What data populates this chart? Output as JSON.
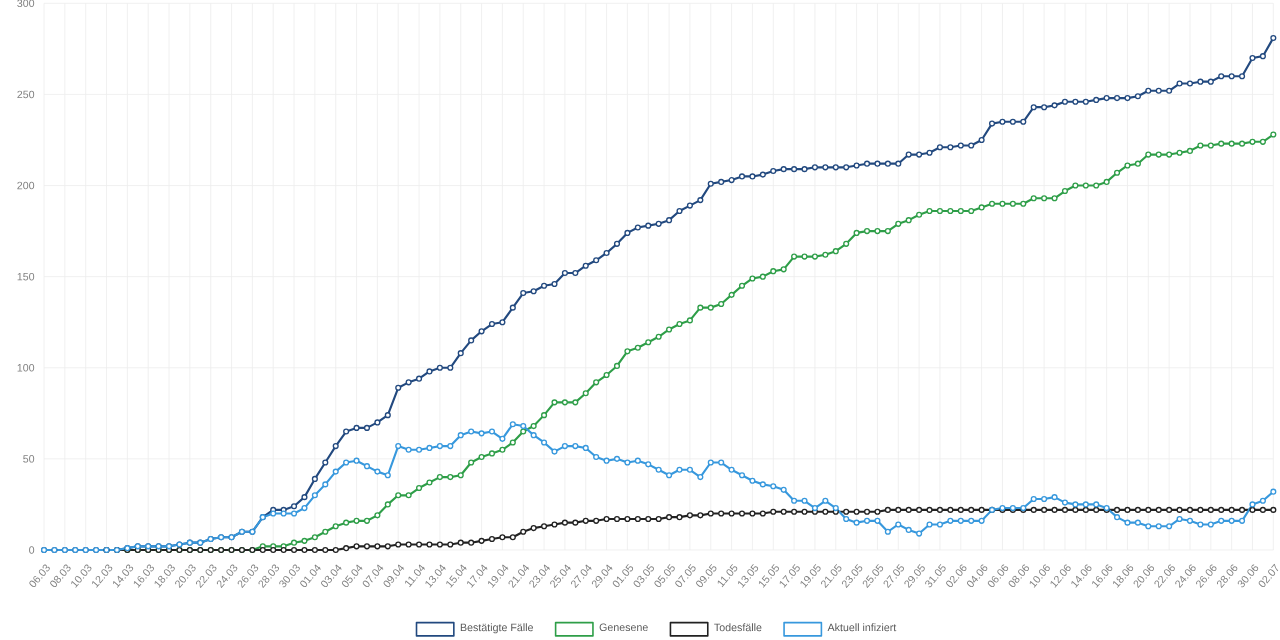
{
  "chart_data": {
    "type": "line",
    "categories": [
      "06.03",
      null,
      "08.03",
      null,
      "10.03",
      null,
      "12.03",
      null,
      "14.03",
      null,
      "16.03",
      null,
      "18.03",
      null,
      "20.03",
      null,
      "22.03",
      null,
      "24.03",
      null,
      "26.03",
      null,
      "28.03",
      null,
      "30.03",
      null,
      "01.04",
      null,
      "03.04",
      null,
      "05.04",
      null,
      "07.04",
      null,
      "09.04",
      null,
      "11.04",
      null,
      "13.04",
      null,
      "15.04",
      null,
      "17.04",
      null,
      "19.04",
      null,
      "21.04",
      null,
      "23.04",
      null,
      "25.04",
      null,
      "27.04",
      null,
      "29.04",
      null,
      "01.05",
      null,
      "03.05",
      null,
      "05.05",
      null,
      "07.05",
      null,
      "09.05",
      null,
      "11.05",
      null,
      "13.05",
      null,
      "15.05",
      null,
      "17.05",
      null,
      "19.05",
      null,
      "21.05",
      null,
      "23.05",
      null,
      "25.05",
      null,
      "27.05",
      null,
      "29.05",
      null,
      "31.05",
      null,
      "02.06",
      null,
      "04.06",
      null,
      "06.06",
      null,
      "08.06",
      null,
      "10.06",
      null,
      "12.06",
      null,
      "14.06",
      null,
      "16.06",
      null,
      "18.06",
      null,
      "20.06",
      null,
      "22.06",
      null,
      "24.06",
      null,
      "26.06",
      null,
      "28.06",
      null,
      "30.06",
      null,
      "02.07"
    ],
    "series": [
      {
        "name": "Bestätigte Fälle",
        "color": "#22497f",
        "values": [
          0,
          0,
          0,
          0,
          0,
          0,
          0,
          0,
          1,
          2,
          2,
          2,
          2,
          3,
          4,
          4,
          6,
          7,
          7,
          10,
          10,
          18,
          22,
          22,
          24,
          29,
          39,
          48,
          57,
          65,
          67,
          67,
          70,
          74,
          89,
          92,
          94,
          98,
          100,
          100,
          108,
          115,
          120,
          124,
          125,
          133,
          141,
          142,
          145,
          146,
          152,
          152,
          156,
          159,
          163,
          168,
          174,
          177,
          178,
          179,
          181,
          186,
          189,
          192,
          201,
          202,
          203,
          205,
          205,
          206,
          208,
          209,
          209,
          209,
          210,
          210,
          210,
          210,
          211,
          212,
          212,
          212,
          212,
          217,
          217,
          218,
          221,
          221,
          222,
          222,
          225,
          234,
          235,
          235,
          235,
          243,
          243,
          244,
          246,
          246,
          246,
          247,
          248,
          248,
          248,
          249,
          252,
          252,
          252,
          256,
          256,
          257,
          257,
          260,
          260,
          260,
          270,
          271,
          281
        ]
      },
      {
        "name": "Genesene",
        "color": "#2e9e48",
        "values": [
          null,
          null,
          null,
          null,
          null,
          null,
          null,
          null,
          0,
          0,
          0,
          0,
          0,
          0,
          0,
          0,
          0,
          0,
          0,
          0,
          0,
          2,
          2,
          2,
          4,
          5,
          7,
          10,
          13,
          15,
          16,
          16,
          19,
          25,
          30,
          30,
          34,
          37,
          40,
          40,
          41,
          48,
          51,
          53,
          55,
          59,
          65,
          68,
          74,
          81,
          81,
          81,
          86,
          92,
          96,
          101,
          109,
          111,
          114,
          117,
          121,
          124,
          126,
          133,
          133,
          135,
          140,
          145,
          149,
          150,
          153,
          154,
          161,
          161,
          161,
          162,
          164,
          168,
          174,
          175,
          175,
          175,
          179,
          181,
          184,
          186,
          186,
          186,
          186,
          186,
          188,
          190,
          190,
          190,
          190,
          193,
          193,
          193,
          197,
          200,
          200,
          200,
          202,
          207,
          211,
          212,
          217,
          217,
          217,
          218,
          219,
          222,
          222,
          223,
          223,
          223,
          224,
          224,
          228
        ]
      },
      {
        "name": "Todesfälle",
        "color": "#222222",
        "values": [
          null,
          null,
          null,
          null,
          null,
          null,
          0,
          0,
          0,
          0,
          0,
          0,
          0,
          0,
          0,
          0,
          0,
          0,
          0,
          0,
          0,
          0,
          0,
          0,
          0,
          0,
          0,
          0,
          0,
          1,
          2,
          2,
          2,
          2,
          3,
          3,
          3,
          3,
          3,
          3,
          4,
          4,
          5,
          6,
          7,
          7,
          10,
          12,
          13,
          14,
          15,
          15,
          16,
          16,
          17,
          17,
          17,
          17,
          17,
          17,
          18,
          18,
          19,
          19,
          20,
          20,
          20,
          20,
          20,
          20,
          21,
          21,
          21,
          21,
          21,
          21,
          21,
          21,
          21,
          21,
          21,
          22,
          22,
          22,
          22,
          22,
          22,
          22,
          22,
          22,
          22,
          22,
          22,
          22,
          22,
          22,
          22,
          22,
          22,
          22,
          22,
          22,
          22,
          22,
          22,
          22,
          22,
          22,
          22,
          22,
          22,
          22,
          22,
          22,
          22,
          22,
          22,
          22,
          22
        ]
      },
      {
        "name": "Aktuell infiziert",
        "color": "#3798dd",
        "values": [
          0,
          0,
          0,
          0,
          0,
          0,
          0,
          0,
          1,
          2,
          2,
          2,
          2,
          3,
          4,
          4,
          6,
          7,
          7,
          10,
          10,
          18,
          20,
          20,
          20,
          23,
          30,
          36,
          43,
          48,
          49,
          46,
          43,
          41,
          57,
          55,
          55,
          56,
          57,
          57,
          63,
          65,
          64,
          65,
          61,
          69,
          68,
          63,
          59,
          54,
          57,
          57,
          56,
          51,
          49,
          50,
          48,
          49,
          47,
          44,
          41,
          44,
          44,
          40,
          48,
          48,
          44,
          41,
          38,
          36,
          35,
          33,
          27,
          27,
          23,
          27,
          23,
          17,
          15,
          16,
          16,
          10,
          14,
          11,
          9,
          14,
          14,
          16,
          16,
          16,
          16,
          22,
          23,
          23,
          23,
          28,
          28,
          29,
          26,
          25,
          25,
          25,
          23,
          18,
          15,
          15,
          13,
          13,
          13,
          17,
          16,
          14,
          14,
          16,
          16,
          16,
          25,
          27,
          32
        ]
      }
    ],
    "ylim": [
      0,
      300
    ],
    "yticks": [
      0,
      50,
      100,
      150,
      200,
      250,
      300
    ],
    "grid": true,
    "legend": "bottom",
    "marker": "circle",
    "line_style": "solid"
  }
}
